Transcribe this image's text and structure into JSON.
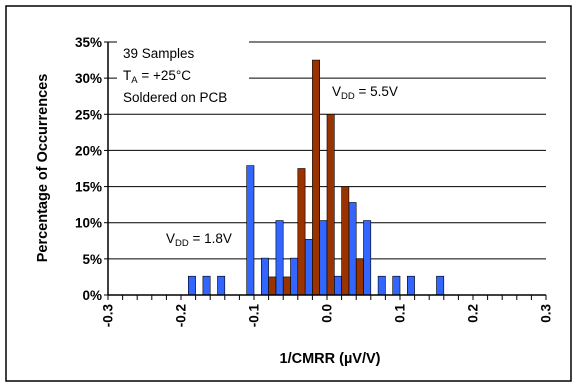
{
  "chart_data": {
    "type": "bar",
    "xlabel": "1/CMRR (µV/V)",
    "ylabel": "Percentage of Occurrences",
    "xlim": [
      -0.3,
      0.3
    ],
    "ylim": [
      0,
      35
    ],
    "y_ticks": [
      "0%",
      "5%",
      "10%",
      "15%",
      "20%",
      "25%",
      "30%",
      "35%"
    ],
    "x_ticks": [
      "-0.3",
      "-0.2",
      "-0.1",
      "0.0",
      "0.1",
      "0.2",
      "0.3"
    ],
    "grid": "horizontal",
    "bin_width": 0.01,
    "series": [
      {
        "label": {
          "main": "V",
          "sub": "DD",
          "rest": " = 1.8V"
        },
        "color": "#3366ff",
        "points": [
          {
            "x": -0.185,
            "y": 2.6
          },
          {
            "x": -0.165,
            "y": 2.6
          },
          {
            "x": -0.145,
            "y": 2.6
          },
          {
            "x": -0.105,
            "y": 17.9
          },
          {
            "x": -0.085,
            "y": 5.1
          },
          {
            "x": -0.065,
            "y": 10.3
          },
          {
            "x": -0.045,
            "y": 5.1
          },
          {
            "x": -0.025,
            "y": 7.7
          },
          {
            "x": -0.005,
            "y": 10.3
          },
          {
            "x": 0.015,
            "y": 2.6
          },
          {
            "x": 0.035,
            "y": 12.8
          },
          {
            "x": 0.055,
            "y": 10.3
          },
          {
            "x": 0.075,
            "y": 2.6
          },
          {
            "x": 0.095,
            "y": 2.6
          },
          {
            "x": 0.115,
            "y": 2.6
          },
          {
            "x": 0.155,
            "y": 2.6
          }
        ]
      },
      {
        "label": {
          "main": "V",
          "sub": "DD",
          "rest": " = 5.5V"
        },
        "color": "#993300",
        "points": [
          {
            "x": -0.075,
            "y": 2.5
          },
          {
            "x": -0.055,
            "y": 2.5
          },
          {
            "x": -0.035,
            "y": 17.5
          },
          {
            "x": -0.015,
            "y": 32.5
          },
          {
            "x": 0.005,
            "y": 25.0
          },
          {
            "x": 0.025,
            "y": 15.0
          },
          {
            "x": 0.045,
            "y": 5.0
          }
        ]
      }
    ],
    "annotations": {
      "samples": "39 Samples",
      "temp": {
        "main": "T",
        "sub": "A",
        "rest": " = +25°C"
      },
      "board": "Soldered on PCB"
    }
  }
}
